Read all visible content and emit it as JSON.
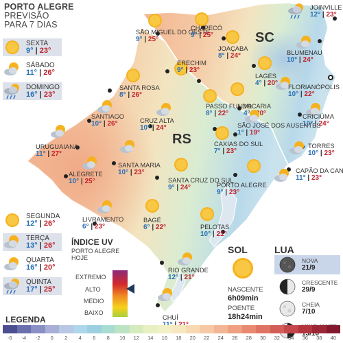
{
  "title": {
    "line1": "PORTO ALEGRE",
    "line2": "PREVISÃO",
    "line3": "PARA 7 DIAS"
  },
  "forecast": [
    {
      "day": "SEXTA",
      "min": "9°",
      "max": "23°",
      "icon": "sun-icon"
    },
    {
      "day": "SÁBADO",
      "min": "11°",
      "max": "26°",
      "icon": "sun-cloud-icon"
    },
    {
      "day": "DOMINGO",
      "min": "16°",
      "max": "23°",
      "icon": "rain-cloud-icon"
    },
    {
      "day": "SEGUNDA",
      "min": "12°",
      "max": "26°",
      "icon": "sun-icon"
    },
    {
      "day": "TERÇA",
      "min": "13°",
      "max": "26°",
      "icon": "sun-cloud-icon"
    },
    {
      "day": "QUARTA",
      "min": "16°",
      "max": "20°",
      "icon": "sun-cloud-icon"
    },
    {
      "day": "QUINTA",
      "min": "17°",
      "max": "25°",
      "icon": "rain-cloud-icon"
    }
  ],
  "states": {
    "rs": "RS",
    "sc": "SC"
  },
  "cities": [
    {
      "name": "JOINVILLE",
      "min": "12°",
      "max": "23°",
      "icon": "rain-cloud-icon"
    },
    {
      "name": "SÃO MIGUEL DO OESTE",
      "min": "9°",
      "max": "25°",
      "icon": "sun-icon"
    },
    {
      "name": "CHAPECÓ",
      "min": "9°",
      "max": "25°",
      "icon": "sun-icon"
    },
    {
      "name": "JOAÇABA",
      "min": "8°",
      "max": "24°",
      "icon": "sun-icon"
    },
    {
      "name": "BLUMENAU",
      "min": "10°",
      "max": "24°",
      "icon": "sun-cloud-icon"
    },
    {
      "name": "LAGES",
      "min": "4°",
      "max": "20°",
      "icon": "sun-icon"
    },
    {
      "name": "FLORIANÓPOLIS",
      "min": "10°",
      "max": "22°",
      "icon": "sun-cloud-icon"
    },
    {
      "name": "SANTA ROSA",
      "min": "8°",
      "max": "26°",
      "icon": "sun-icon"
    },
    {
      "name": "ERECHIM",
      "min": "9°",
      "max": "23°",
      "icon": "sun-icon"
    },
    {
      "name": "PASSO FUNDO",
      "min": "8°",
      "max": "22°",
      "icon": "sun-icon"
    },
    {
      "name": "VACARIA",
      "min": "4°",
      "max": "20°",
      "icon": "sun-icon"
    },
    {
      "name": "CRICIÚMA",
      "min": "10°",
      "max": "24°",
      "icon": "sun-cloud-icon"
    },
    {
      "name": "SANTIAGO",
      "min": "10°",
      "max": "26°",
      "icon": "sun-cloud-icon"
    },
    {
      "name": "CRUZ ALTA",
      "min": "10°",
      "max": "24°",
      "icon": "sun-cloud-icon"
    },
    {
      "name": "SÃO JOSÉ DOS AUSENTES",
      "min": "1°",
      "max": "19°",
      "icon": "sun-cloud-icon"
    },
    {
      "name": "URUGUAIANA",
      "min": "11°",
      "max": "27°",
      "icon": "sun-cloud-icon"
    },
    {
      "name": "CAXIAS DO SUL",
      "min": "7°",
      "max": "23°",
      "icon": "sun-icon"
    },
    {
      "name": "TORRES",
      "min": "10°",
      "max": "23°",
      "icon": "sun-cloud-icon"
    },
    {
      "name": "SANTA MARIA",
      "min": "10°",
      "max": "23°",
      "icon": "sun-cloud-icon"
    },
    {
      "name": "ALEGRETE",
      "min": "10°",
      "max": "25°",
      "icon": "sun-cloud-icon"
    },
    {
      "name": "CAPÃO DA CANOA",
      "min": "11°",
      "max": "23°",
      "icon": "sun-cloud-icon"
    },
    {
      "name": "SANTA CRUZ DO SUL",
      "min": "9°",
      "max": "24°",
      "icon": "sun-icon"
    },
    {
      "name": "PORTO ALEGRE",
      "min": "9°",
      "max": "23°",
      "icon": "sun-icon"
    },
    {
      "name": "LIVRAMENTO",
      "min": "6°",
      "max": "23°",
      "icon": "sun-cloud-icon"
    },
    {
      "name": "BAGÉ",
      "min": "6°",
      "max": "22°",
      "icon": "sun-icon"
    },
    {
      "name": "PELOTAS",
      "min": "10°",
      "max": "21°",
      "icon": "sun-icon"
    },
    {
      "name": "RIO GRANDE",
      "min": "12°",
      "max": "21°",
      "icon": "sun-cloud-icon"
    },
    {
      "name": "CHUÍ",
      "min": "11°",
      "max": "21°",
      "icon": "sun-cloud-icon"
    }
  ],
  "uv": {
    "title": "ÍNDICE UV",
    "sub1": "PORTO ALEGRE",
    "sub2": "HOJE",
    "levels": [
      "EXTREMO",
      "ALTO",
      "MÉDIO",
      "BAIXO"
    ],
    "current": "ALTO"
  },
  "sun": {
    "title": "SOL",
    "rise_label": "NASCENTE",
    "rise": "6h09min",
    "set_label": "POENTE",
    "set": "18h24min"
  },
  "moon": {
    "title": "LUA",
    "phases": [
      {
        "name": "NOVA",
        "date": "21/9",
        "icon": "new-moon-icon"
      },
      {
        "name": "CRESCENTE",
        "date": "29/9",
        "icon": "first-quarter-moon-icon"
      },
      {
        "name": "CHEIA",
        "date": "7/10",
        "icon": "full-moon-icon"
      },
      {
        "name": "MINGUANTE",
        "date": "13/10",
        "icon": "last-quarter-moon-icon"
      }
    ]
  },
  "legend": {
    "title": "LEGENDA",
    "ticks": [
      "-6",
      "-4",
      "-2",
      "0",
      "2",
      "4",
      "6",
      "8",
      "10",
      "12",
      "14",
      "16",
      "18",
      "20",
      "22",
      "24",
      "26",
      "28",
      "30",
      "32",
      "34",
      "36",
      "38",
      "40"
    ],
    "colors": [
      "#4b4f8f",
      "#6a6fae",
      "#8a8fc4",
      "#a9aed6",
      "#b7c7e4",
      "#aed6ec",
      "#9ccfe0",
      "#a9dcd3",
      "#bde3c5",
      "#d6ebbd",
      "#e8f0c2",
      "#f2f0c6",
      "#f6e7bf",
      "#f7d9b2",
      "#f6c8a4",
      "#f3b593",
      "#eea081",
      "#e88a70",
      "#df7463",
      "#d35d57",
      "#c5474b",
      "#b3343f",
      "#9c2536",
      "#83192f"
    ]
  }
}
